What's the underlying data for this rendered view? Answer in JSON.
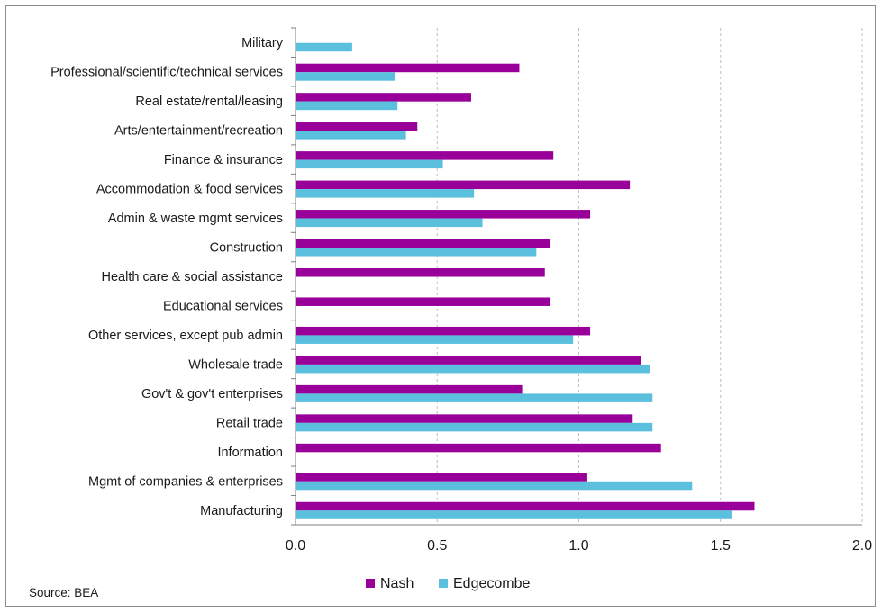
{
  "chart_data": {
    "type": "bar",
    "orientation": "horizontal",
    "categories": [
      "Military",
      "Professional/scientific/technical services",
      "Real estate/rental/leasing",
      "Arts/entertainment/recreation",
      "Finance & insurance",
      "Accommodation & food services",
      "Admin & waste mgmt services",
      "Construction",
      "Health care & social assistance",
      "Educational services",
      "Other services, except pub admin",
      "Wholesale trade",
      "Gov't & gov't enterprises",
      "Retail trade",
      "Information",
      "Mgmt of companies & enterprises",
      "Manufacturing"
    ],
    "series": [
      {
        "name": "Nash",
        "color": "#990099",
        "values": [
          0,
          0.79,
          0.62,
          0.43,
          0.91,
          1.18,
          1.04,
          0.9,
          0.88,
          0.9,
          1.04,
          1.22,
          0.8,
          1.19,
          1.29,
          1.03,
          1.62
        ]
      },
      {
        "name": "Edgecombe",
        "color": "#5BC0DE",
        "values": [
          0.2,
          0.35,
          0.36,
          0.39,
          0.52,
          0.63,
          0.66,
          0.85,
          0,
          0,
          0.98,
          1.25,
          1.26,
          1.26,
          0,
          1.4,
          1.54
        ]
      }
    ],
    "xlim": [
      0,
      2.0
    ],
    "xticks": [
      "0.0",
      "0.5",
      "1.0",
      "1.5",
      "2.0"
    ],
    "grid": "vertical dashed",
    "legend": "bottom-center",
    "title": "",
    "xlabel": "",
    "ylabel": ""
  },
  "source_note": "Source: BEA"
}
